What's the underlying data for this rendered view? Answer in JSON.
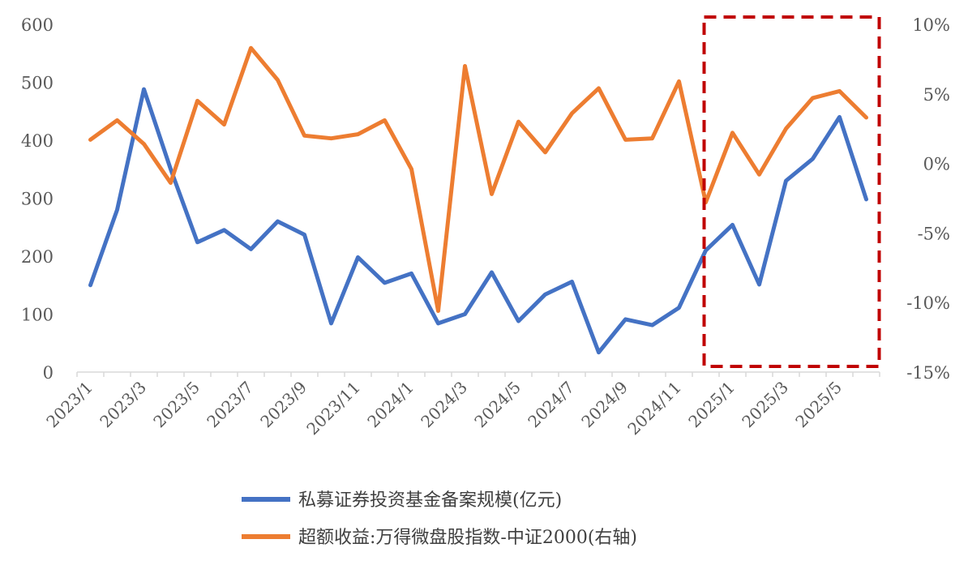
{
  "chart_data": {
    "type": "line",
    "title": "",
    "xlabel": "",
    "ylabel": "",
    "x": [
      "2023/1",
      "2023/2",
      "2023/3",
      "2023/4",
      "2023/5",
      "2023/6",
      "2023/7",
      "2023/8",
      "2023/9",
      "2023/10",
      "2023/11",
      "2023/12",
      "2024/1",
      "2024/2",
      "2024/3",
      "2024/4",
      "2024/5",
      "2024/6",
      "2024/7",
      "2024/8",
      "2024/9",
      "2024/10",
      "2024/11",
      "2024/12",
      "2025/1",
      "2025/2",
      "2025/3",
      "2025/4",
      "2025/5",
      "2025/6"
    ],
    "x_tick_labels": [
      "2023/1",
      "2023/3",
      "2023/5",
      "2023/7",
      "2023/9",
      "2023/11",
      "2024/1",
      "2024/3",
      "2024/5",
      "2024/7",
      "2024/9",
      "2024/11",
      "2025/1",
      "2025/3",
      "2025/5"
    ],
    "y_left": {
      "range": [
        0,
        600
      ],
      "ticks": [
        0,
        100,
        200,
        300,
        400,
        500,
        600
      ]
    },
    "y_right": {
      "range": [
        -15,
        10
      ],
      "ticks": [
        -15,
        -10,
        -5,
        0,
        5,
        10
      ],
      "tick_labels": [
        "-15%",
        "-10%",
        "-5%",
        "0%",
        "5%",
        "10%"
      ]
    },
    "series": [
      {
        "name": "私募证券投资基金备案规模(亿元)",
        "axis": "left",
        "color": "#4472C4",
        "values": [
          150,
          280,
          488,
          350,
          224,
          245,
          212,
          260,
          237,
          84,
          198,
          154,
          170,
          84,
          100,
          172,
          88,
          134,
          156,
          34,
          91,
          81,
          111,
          210,
          254,
          151,
          330,
          368,
          440,
          298
        ]
      },
      {
        "name": "超额收益:万得微盘股指数-中证2000(右轴)",
        "axis": "right",
        "color": "#ED7D31",
        "values": [
          1.7,
          3.1,
          1.4,
          -1.4,
          4.5,
          2.8,
          8.3,
          6.0,
          2.0,
          1.8,
          2.1,
          3.1,
          -0.4,
          -10.6,
          7.0,
          -2.2,
          3.0,
          0.8,
          3.6,
          5.4,
          1.7,
          1.8,
          5.9,
          -2.8,
          2.2,
          -0.8,
          2.5,
          4.7,
          5.2,
          3.3
        ]
      }
    ],
    "grid": false,
    "legend": "bottom",
    "annotations": [
      {
        "type": "dashed-box",
        "color": "#C00000",
        "from_x": "2024/12",
        "to_x": "2025/6"
      }
    ]
  }
}
